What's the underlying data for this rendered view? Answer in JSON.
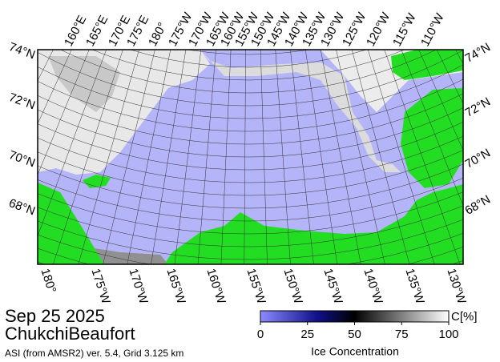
{
  "map": {
    "top_labels": [
      "160°E",
      "165°E",
      "170°E",
      "175°E",
      "180°",
      "175°W",
      "170°W",
      "165°W",
      "160°W",
      "155°W",
      "150°W",
      "145°W",
      "140°W",
      "135°W",
      "130°W",
      "125°W",
      "120°W",
      "115°W",
      "110°W"
    ],
    "bottom_labels": [
      "180°",
      "175°W",
      "170°W",
      "165°W",
      "160°W",
      "155°W",
      "150°W",
      "145°W",
      "140°W",
      "135°W",
      "130°W"
    ],
    "left_labels": [
      "74°N",
      "72°N",
      "70°N",
      "68°N"
    ],
    "right_labels": [
      "74°N",
      "72°N",
      "70°N",
      "68°N"
    ]
  },
  "caption": {
    "date": "Sep 25 2025",
    "region": "ChukchiBeaufort",
    "source": "ASI (from AMSR2) ver. 5.4,  Grid 3.125 km"
  },
  "colorbar": {
    "lim": [
      0,
      100
    ],
    "ticks": [
      0,
      25,
      50,
      75,
      100
    ],
    "unit": "C[%]",
    "label": "Ice Concentration"
  }
}
